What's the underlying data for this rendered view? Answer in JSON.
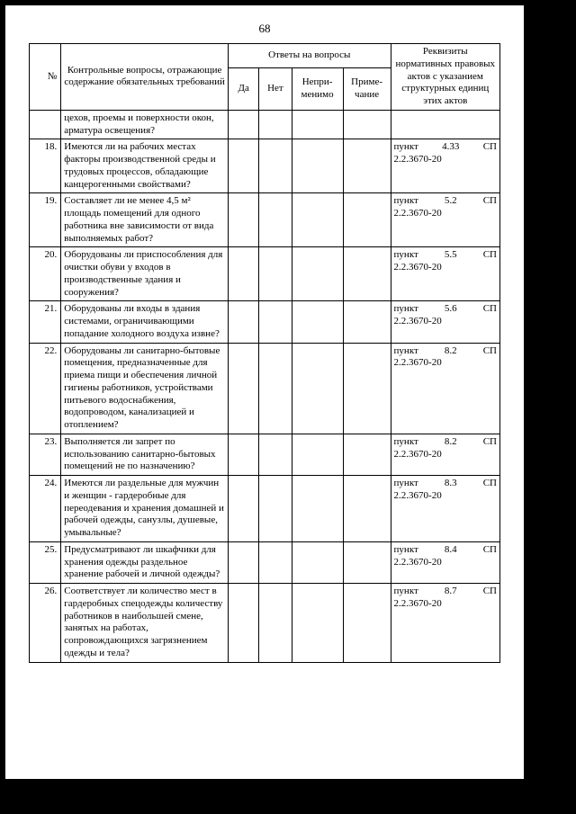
{
  "page_number": "68",
  "headers": {
    "num": "№",
    "question": "Контрольные вопросы, отражающие содержание обязательных требований",
    "answers": "Ответы на вопросы",
    "da": "Да",
    "net": "Нет",
    "nepri": "Непри-менимо",
    "prime": "Приме-чание",
    "rekv": "Реквизиты нормативных правовых актов с указанием структурных единиц этих актов"
  },
  "rows": [
    {
      "num": "",
      "question": "цехов, проемы и поверхности окон, арматура освещения?",
      "ref_p": "",
      "ref_n": "",
      "ref_sp": "",
      "ref2": ""
    },
    {
      "num": "18.",
      "question": "Имеются ли на рабочих местах факторы производственной среды и трудовых процессов, обладающие канцерогенными свойствами?",
      "ref_p": "пункт",
      "ref_n": "4.33",
      "ref_sp": "СП",
      "ref2": "2.2.3670-20"
    },
    {
      "num": "19.",
      "question": "Составляет ли не менее 4,5 м² площадь помещений для одного работника вне зависимости от вида выполняемых работ?",
      "ref_p": "пункт",
      "ref_n": "5.2",
      "ref_sp": "СП",
      "ref2": "2.2.3670-20"
    },
    {
      "num": "20.",
      "question": "Оборудованы ли приспособления для очистки обуви у входов в производственные здания и сооружения?",
      "ref_p": "пункт",
      "ref_n": "5.5",
      "ref_sp": "СП",
      "ref2": "2.2.3670-20"
    },
    {
      "num": "21.",
      "question": "Оборудованы ли входы в здания системами, ограничивающими попадание холодного воздуха извне?",
      "ref_p": "пункт",
      "ref_n": "5.6",
      "ref_sp": "СП",
      "ref2": "2.2.3670-20"
    },
    {
      "num": "22.",
      "question": "Оборудованы ли санитарно-бытовые помещения, предназначенные для приема пищи и обеспечения личной гигиены работников, устройствами питьевого водоснабжения, водопроводом, канализацией и отоплением?",
      "ref_p": "пункт",
      "ref_n": "8.2",
      "ref_sp": "СП",
      "ref2": "2.2.3670-20"
    },
    {
      "num": "23.",
      "question": "Выполняется ли запрет по использованию санитарно-бытовых помещений не по назначению?",
      "ref_p": "пункт",
      "ref_n": "8.2",
      "ref_sp": "СП",
      "ref2": "2.2.3670-20"
    },
    {
      "num": "24.",
      "question": "Имеются ли раздельные для мужчин и женщин - гардеробные для переодевания и хранения домашней и рабочей одежды, санузлы, душевые, умывальные?",
      "ref_p": "пункт",
      "ref_n": "8.3",
      "ref_sp": "СП",
      "ref2": "2.2.3670-20"
    },
    {
      "num": "25.",
      "question": "Предусматривают ли шкафчики для хранения одежды раздельное хранение рабочей и личной одежды?",
      "ref_p": "пункт",
      "ref_n": "8.4",
      "ref_sp": "СП",
      "ref2": "2.2.3670-20"
    },
    {
      "num": "26.",
      "question": "Соответствует ли количество мест в гардеробных спецодежды количеству работников в наибольшей смене, занятых на работах, сопровождающихся загрязнением одежды и тела?",
      "ref_p": "пункт",
      "ref_n": "8.7",
      "ref_sp": "СП",
      "ref2": "2.2.3670-20"
    }
  ]
}
